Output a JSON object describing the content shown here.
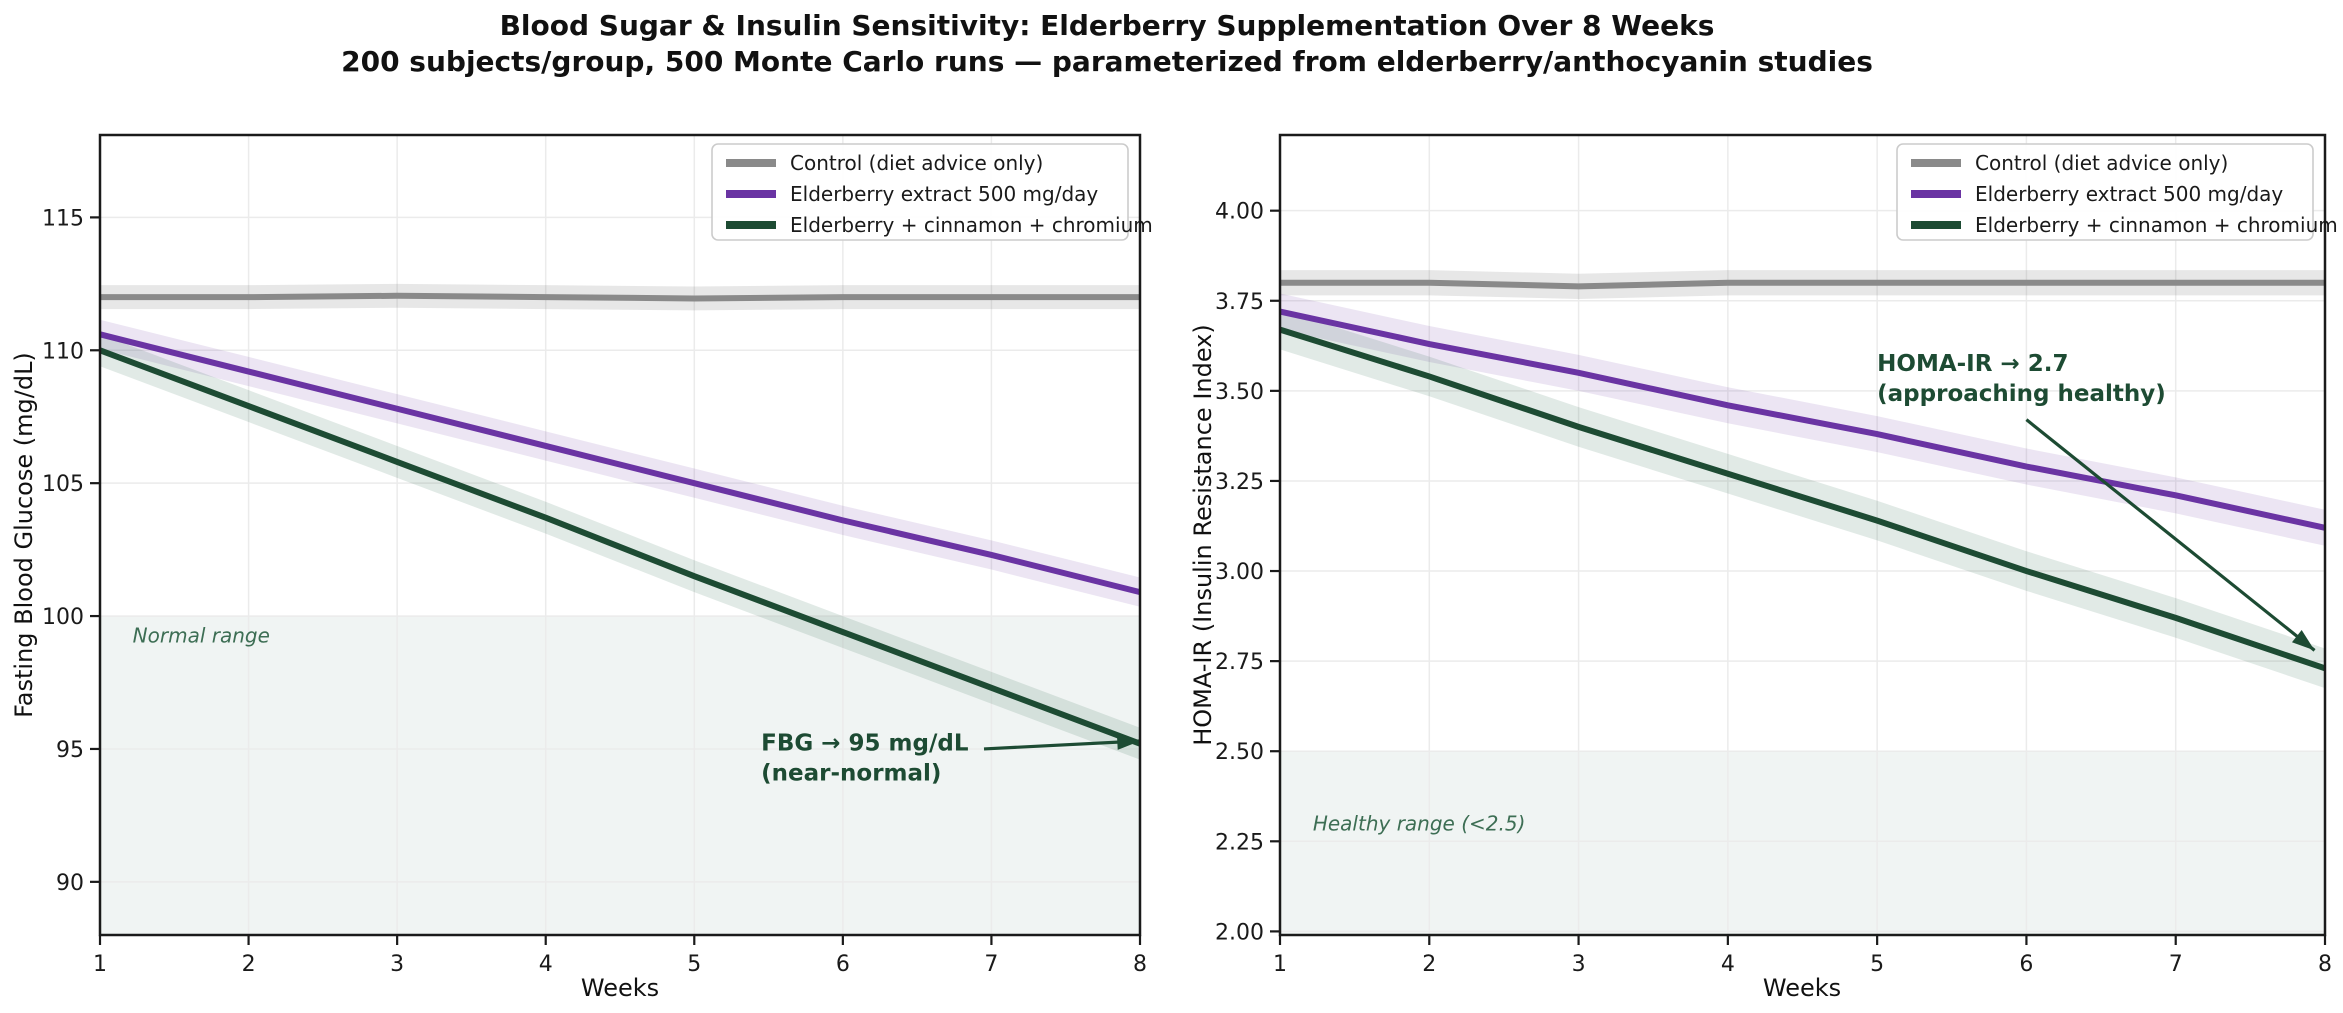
{
  "header": {
    "title": "Blood Sugar & Insulin Sensitivity: Elderberry Supplementation Over 8 Weeks",
    "subtitle": "200 subjects/group, 500 Monte Carlo runs — parameterized from elderberry/anthocyanin studies"
  },
  "colors": {
    "control": "#8a8a8a",
    "elderberry": "#6a34a3",
    "combo": "#1d4b33",
    "band_control": "rgba(120,120,120,0.18)",
    "band_elderberry": "rgba(106,52,163,0.13)",
    "band_combo": "rgba(45,106,79,0.14)",
    "range_fill": "rgba(45,106,79,0.07)",
    "range_label": "#3d6e54",
    "annotation": "#1d4b33",
    "grid": "#ebebeb",
    "spine": "#1a1a1a",
    "tick_label": "#1a1a1a",
    "legend_border": "#cccccc",
    "legend_text": "#1a1a1a"
  },
  "chart_data": [
    {
      "id": "fbg",
      "type": "line",
      "xlabel": "Weeks",
      "ylabel": "Fasting Blood Glucose (mg/dL)",
      "x": [
        1,
        2,
        3,
        4,
        5,
        6,
        7,
        8
      ],
      "xlim": [
        1,
        8
      ],
      "ylim": [
        88.0,
        118.1
      ],
      "xtick_labels": [
        "1",
        "2",
        "3",
        "4",
        "5",
        "6",
        "7",
        "8"
      ],
      "ytick_values": [
        90,
        95,
        100,
        105,
        110,
        115
      ],
      "ytick_labels": [
        "90",
        "95",
        "100",
        "105",
        "110",
        "115"
      ],
      "grid": true,
      "legend_position": "top-right",
      "series": [
        {
          "key": "control",
          "name": "Control (diet advice only)",
          "color_key": "control",
          "band_key": "band_control",
          "band": 0.45,
          "values": [
            112.0,
            112.0,
            112.05,
            112.0,
            111.95,
            112.0,
            112.0,
            112.0
          ]
        },
        {
          "key": "elderberry",
          "name": "Elderberry extract 500 mg/day",
          "color_key": "elderberry",
          "band_key": "band_elderberry",
          "band": 0.55,
          "values": [
            110.6,
            109.2,
            107.8,
            106.4,
            105.0,
            103.6,
            102.3,
            100.9
          ]
        },
        {
          "key": "combo",
          "name": "Elderberry + cinnamon + chromium",
          "color_key": "combo",
          "band_key": "band_combo",
          "band": 0.6,
          "values": [
            110.0,
            107.9,
            105.8,
            103.7,
            101.5,
            99.4,
            97.3,
            95.2
          ]
        }
      ],
      "shaded_region": {
        "label": "Normal range",
        "below": 100,
        "label_pos": [
          1.22,
          99.0
        ]
      },
      "annotation": {
        "lines": [
          "FBG → 95 mg/dL",
          "(near-normal)"
        ],
        "text_pos": [
          5.45,
          94.95
        ],
        "arrow_start": [
          6.95,
          95.0
        ],
        "arrow_end": [
          8.0,
          95.3
        ]
      }
    },
    {
      "id": "homa",
      "type": "line",
      "xlabel": "Weeks",
      "ylabel": "HOMA-IR (Insulin Resistance Index)",
      "x": [
        1,
        2,
        3,
        4,
        5,
        6,
        7,
        8
      ],
      "xlim": [
        1,
        8
      ],
      "ylim": [
        1.99,
        4.21
      ],
      "xtick_labels": [
        "1",
        "2",
        "3",
        "4",
        "5",
        "6",
        "7",
        "8"
      ],
      "ytick_values": [
        2.0,
        2.25,
        2.5,
        2.75,
        3.0,
        3.25,
        3.5,
        3.75,
        4.0
      ],
      "ytick_labels": [
        "2.00",
        "2.25",
        "2.50",
        "2.75",
        "3.00",
        "3.25",
        "3.50",
        "3.75",
        "4.00"
      ],
      "grid": true,
      "legend_position": "top-right",
      "series": [
        {
          "key": "control",
          "name": "Control (diet advice only)",
          "color_key": "control",
          "band_key": "band_control",
          "band": 0.035,
          "values": [
            3.8,
            3.8,
            3.79,
            3.8,
            3.8,
            3.8,
            3.8,
            3.8
          ]
        },
        {
          "key": "elderberry",
          "name": "Elderberry extract 500 mg/day",
          "color_key": "elderberry",
          "band_key": "band_elderberry",
          "band": 0.05,
          "values": [
            3.72,
            3.63,
            3.55,
            3.46,
            3.38,
            3.29,
            3.21,
            3.12
          ]
        },
        {
          "key": "combo",
          "name": "Elderberry + cinnamon + chromium",
          "color_key": "combo",
          "band_key": "band_combo",
          "band": 0.055,
          "values": [
            3.67,
            3.54,
            3.4,
            3.27,
            3.14,
            3.0,
            2.87,
            2.73
          ]
        }
      ],
      "shaded_region": {
        "label": "Healthy range (<2.5)",
        "below": 2.5,
        "label_pos": [
          1.22,
          2.28
        ]
      },
      "annotation": {
        "lines": [
          "HOMA-IR → 2.7",
          "(approaching healthy)"
        ],
        "text_pos": [
          5.0,
          3.555
        ],
        "arrow_start": [
          6.0,
          3.42
        ],
        "arrow_end": [
          7.93,
          2.78
        ]
      }
    }
  ]
}
